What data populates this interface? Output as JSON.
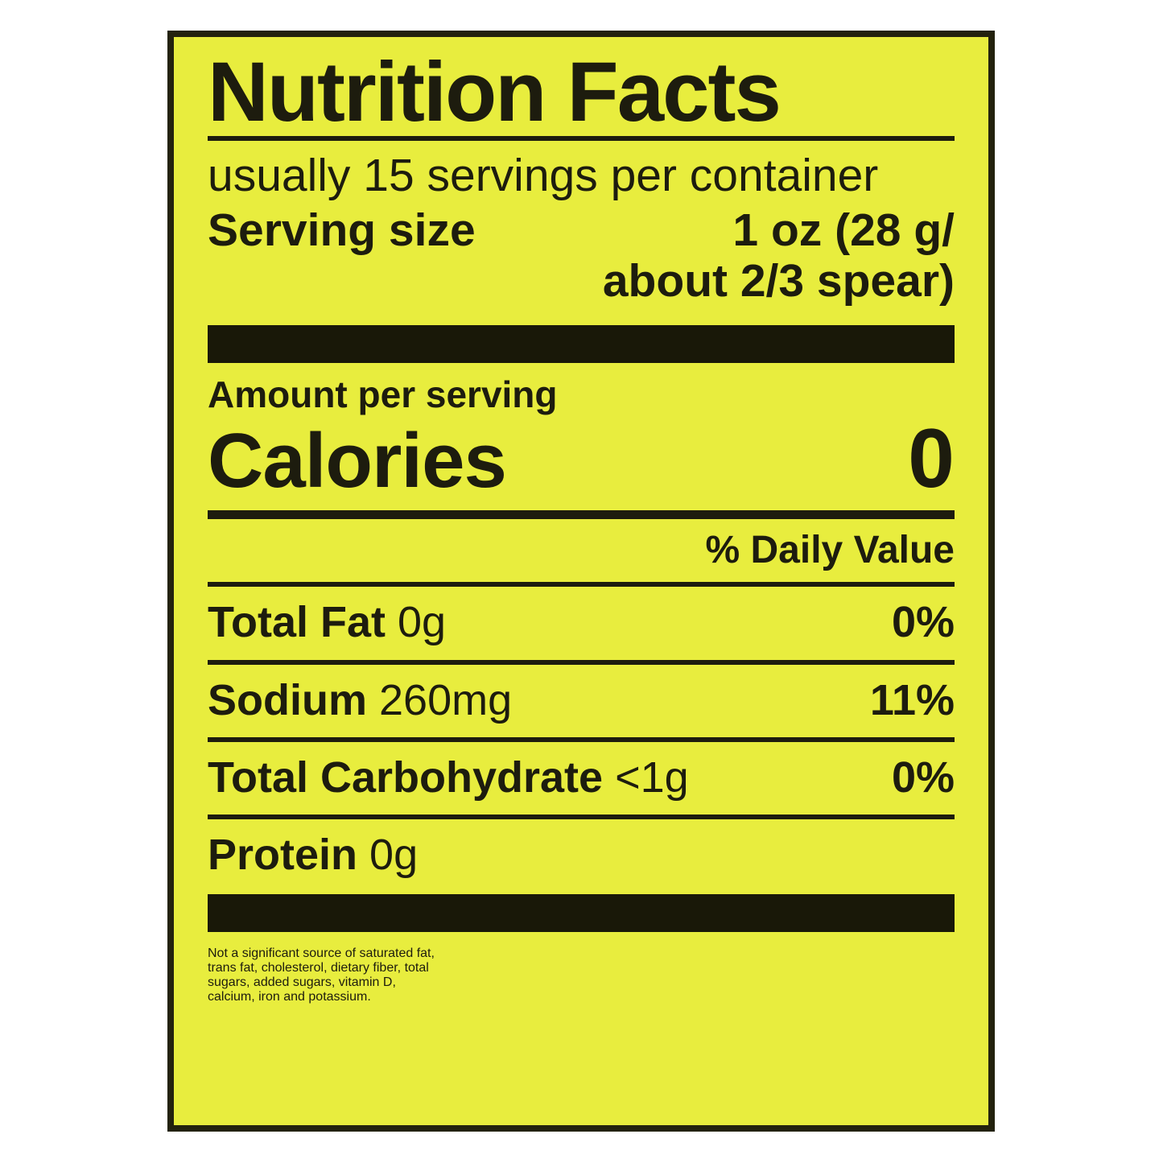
{
  "label": {
    "title": "Nutrition Facts",
    "servings_per_container": "usually 15 servings per container",
    "serving_size_label": "Serving size",
    "serving_size_value_line1": "1 oz (28 g/",
    "serving_size_value_line2": "about 2/3 spear)",
    "amount_per_serving": "Amount per serving",
    "calories_label": "Calories",
    "calories_value": "0",
    "daily_value_header": "% Daily Value",
    "nutrients": [
      {
        "name": "Total Fat",
        "amount": "0g",
        "dv": "0%"
      },
      {
        "name": "Sodium",
        "amount": "260mg",
        "dv": "11%"
      },
      {
        "name": "Total Carbohydrate",
        "amount": "<1g",
        "dv": "0%"
      },
      {
        "name": "Protein",
        "amount": "0g",
        "dv": ""
      }
    ],
    "footnote_lines": [
      "Not a significant source of saturated fat,",
      "trans fat, cholesterol, dietary fiber, total",
      "sugars, added sugars, vitamin D,",
      "calcium, iron and potassium."
    ],
    "colors": {
      "label_bg": "#e8ed3e",
      "text": "#1d1c0e",
      "border": "#23220e"
    }
  }
}
